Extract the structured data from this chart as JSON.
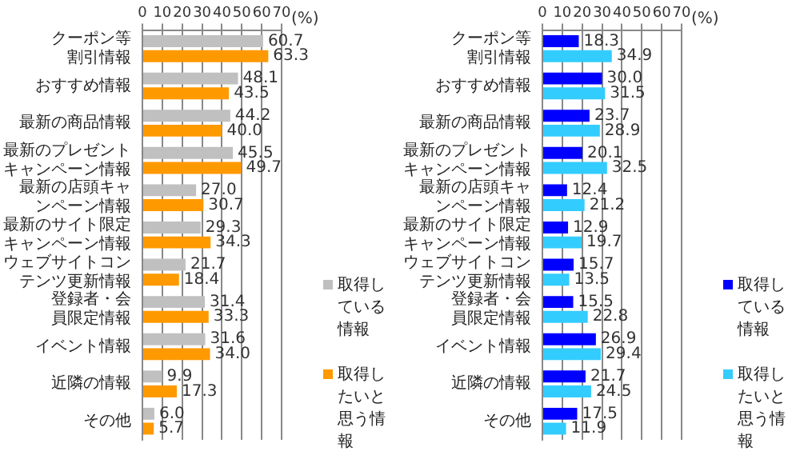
{
  "chart_data": [
    {
      "type": "bar",
      "orientation": "horizontal",
      "categories": [
        "クーポン等割引情報",
        "おすすめ情報",
        "最新の商品情報",
        "最新のプレゼントキャンペーン情報",
        "最新の店頭キャンペーン情報",
        "最新のサイト限定キャンペーン情報",
        "ウェブサイトコンテンツ更新情報",
        "登録者・会員限定情報",
        "イベント情報",
        "近隣の情報",
        "その他"
      ],
      "series": [
        {
          "name": "取得している情報",
          "color": "#c0c0c0",
          "values": [
            60.7,
            48.1,
            44.2,
            45.5,
            27.0,
            29.3,
            21.7,
            31.4,
            31.6,
            9.9,
            6.0
          ],
          "value_labels": [
            "60.7",
            "48.1",
            "44.2",
            "45.5",
            "27.0",
            "29.3",
            "21.7",
            "31.4",
            "31.6",
            "9.9",
            "6.0"
          ]
        },
        {
          "name": "取得したいと思う情報",
          "color": "#ff9900",
          "values": [
            63.3,
            43.5,
            40.0,
            49.7,
            30.7,
            34.3,
            18.4,
            33.3,
            34.0,
            17.3,
            5.7
          ],
          "value_labels": [
            "63.3",
            "43.5",
            "40.0",
            "49.7",
            "30.7",
            "34.3",
            "18.4",
            "33.3",
            "34.0",
            "17.3",
            "5.7"
          ]
        }
      ],
      "xlim": [
        0,
        70
      ],
      "xticks": [
        0,
        10,
        20,
        30,
        40,
        50,
        60,
        70
      ],
      "grid": "x",
      "legend": "bottom right",
      "annotations": [
        "(%)"
      ]
    },
    {
      "type": "bar",
      "orientation": "horizontal",
      "categories": [
        "クーポン等割引情報",
        "おすすめ情報",
        "最新の商品情報",
        "最新のプレゼントキャンペーン情報",
        "最新の店頭キャンペーン情報",
        "最新のサイト限定キャンペーン情報",
        "ウェブサイトコンテンツ更新情報",
        "登録者・会員限定情報",
        "イベント情報",
        "近隣の情報",
        "その他"
      ],
      "series": [
        {
          "name": "取得している情報",
          "color": "#0000ff",
          "values": [
            18.3,
            30.0,
            23.7,
            20.1,
            12.4,
            12.9,
            15.7,
            15.5,
            26.9,
            21.7,
            17.5
          ],
          "value_labels": [
            "18.3",
            "30.0",
            "23.7",
            "20.1",
            "12.4",
            "12.9",
            "15.7",
            "15.5",
            "26.9",
            "21.7",
            "17.5"
          ]
        },
        {
          "name": "取得したいと思う情報",
          "color": "#33ccff",
          "values": [
            34.9,
            31.5,
            28.9,
            32.5,
            21.2,
            19.7,
            13.5,
            22.8,
            29.4,
            24.5,
            11.9
          ],
          "value_labels": [
            "34.9",
            "31.5",
            "28.9",
            "32.5",
            "21.2",
            "19.7",
            "13.5",
            "22.8",
            "29.4",
            "24.5",
            "11.9"
          ]
        }
      ],
      "xlim": [
        0,
        70
      ],
      "xticks": [
        0,
        10,
        20,
        30,
        40,
        50,
        60,
        70
      ],
      "grid": "x",
      "legend": "bottom right",
      "annotations": [
        "(%)"
      ]
    }
  ]
}
